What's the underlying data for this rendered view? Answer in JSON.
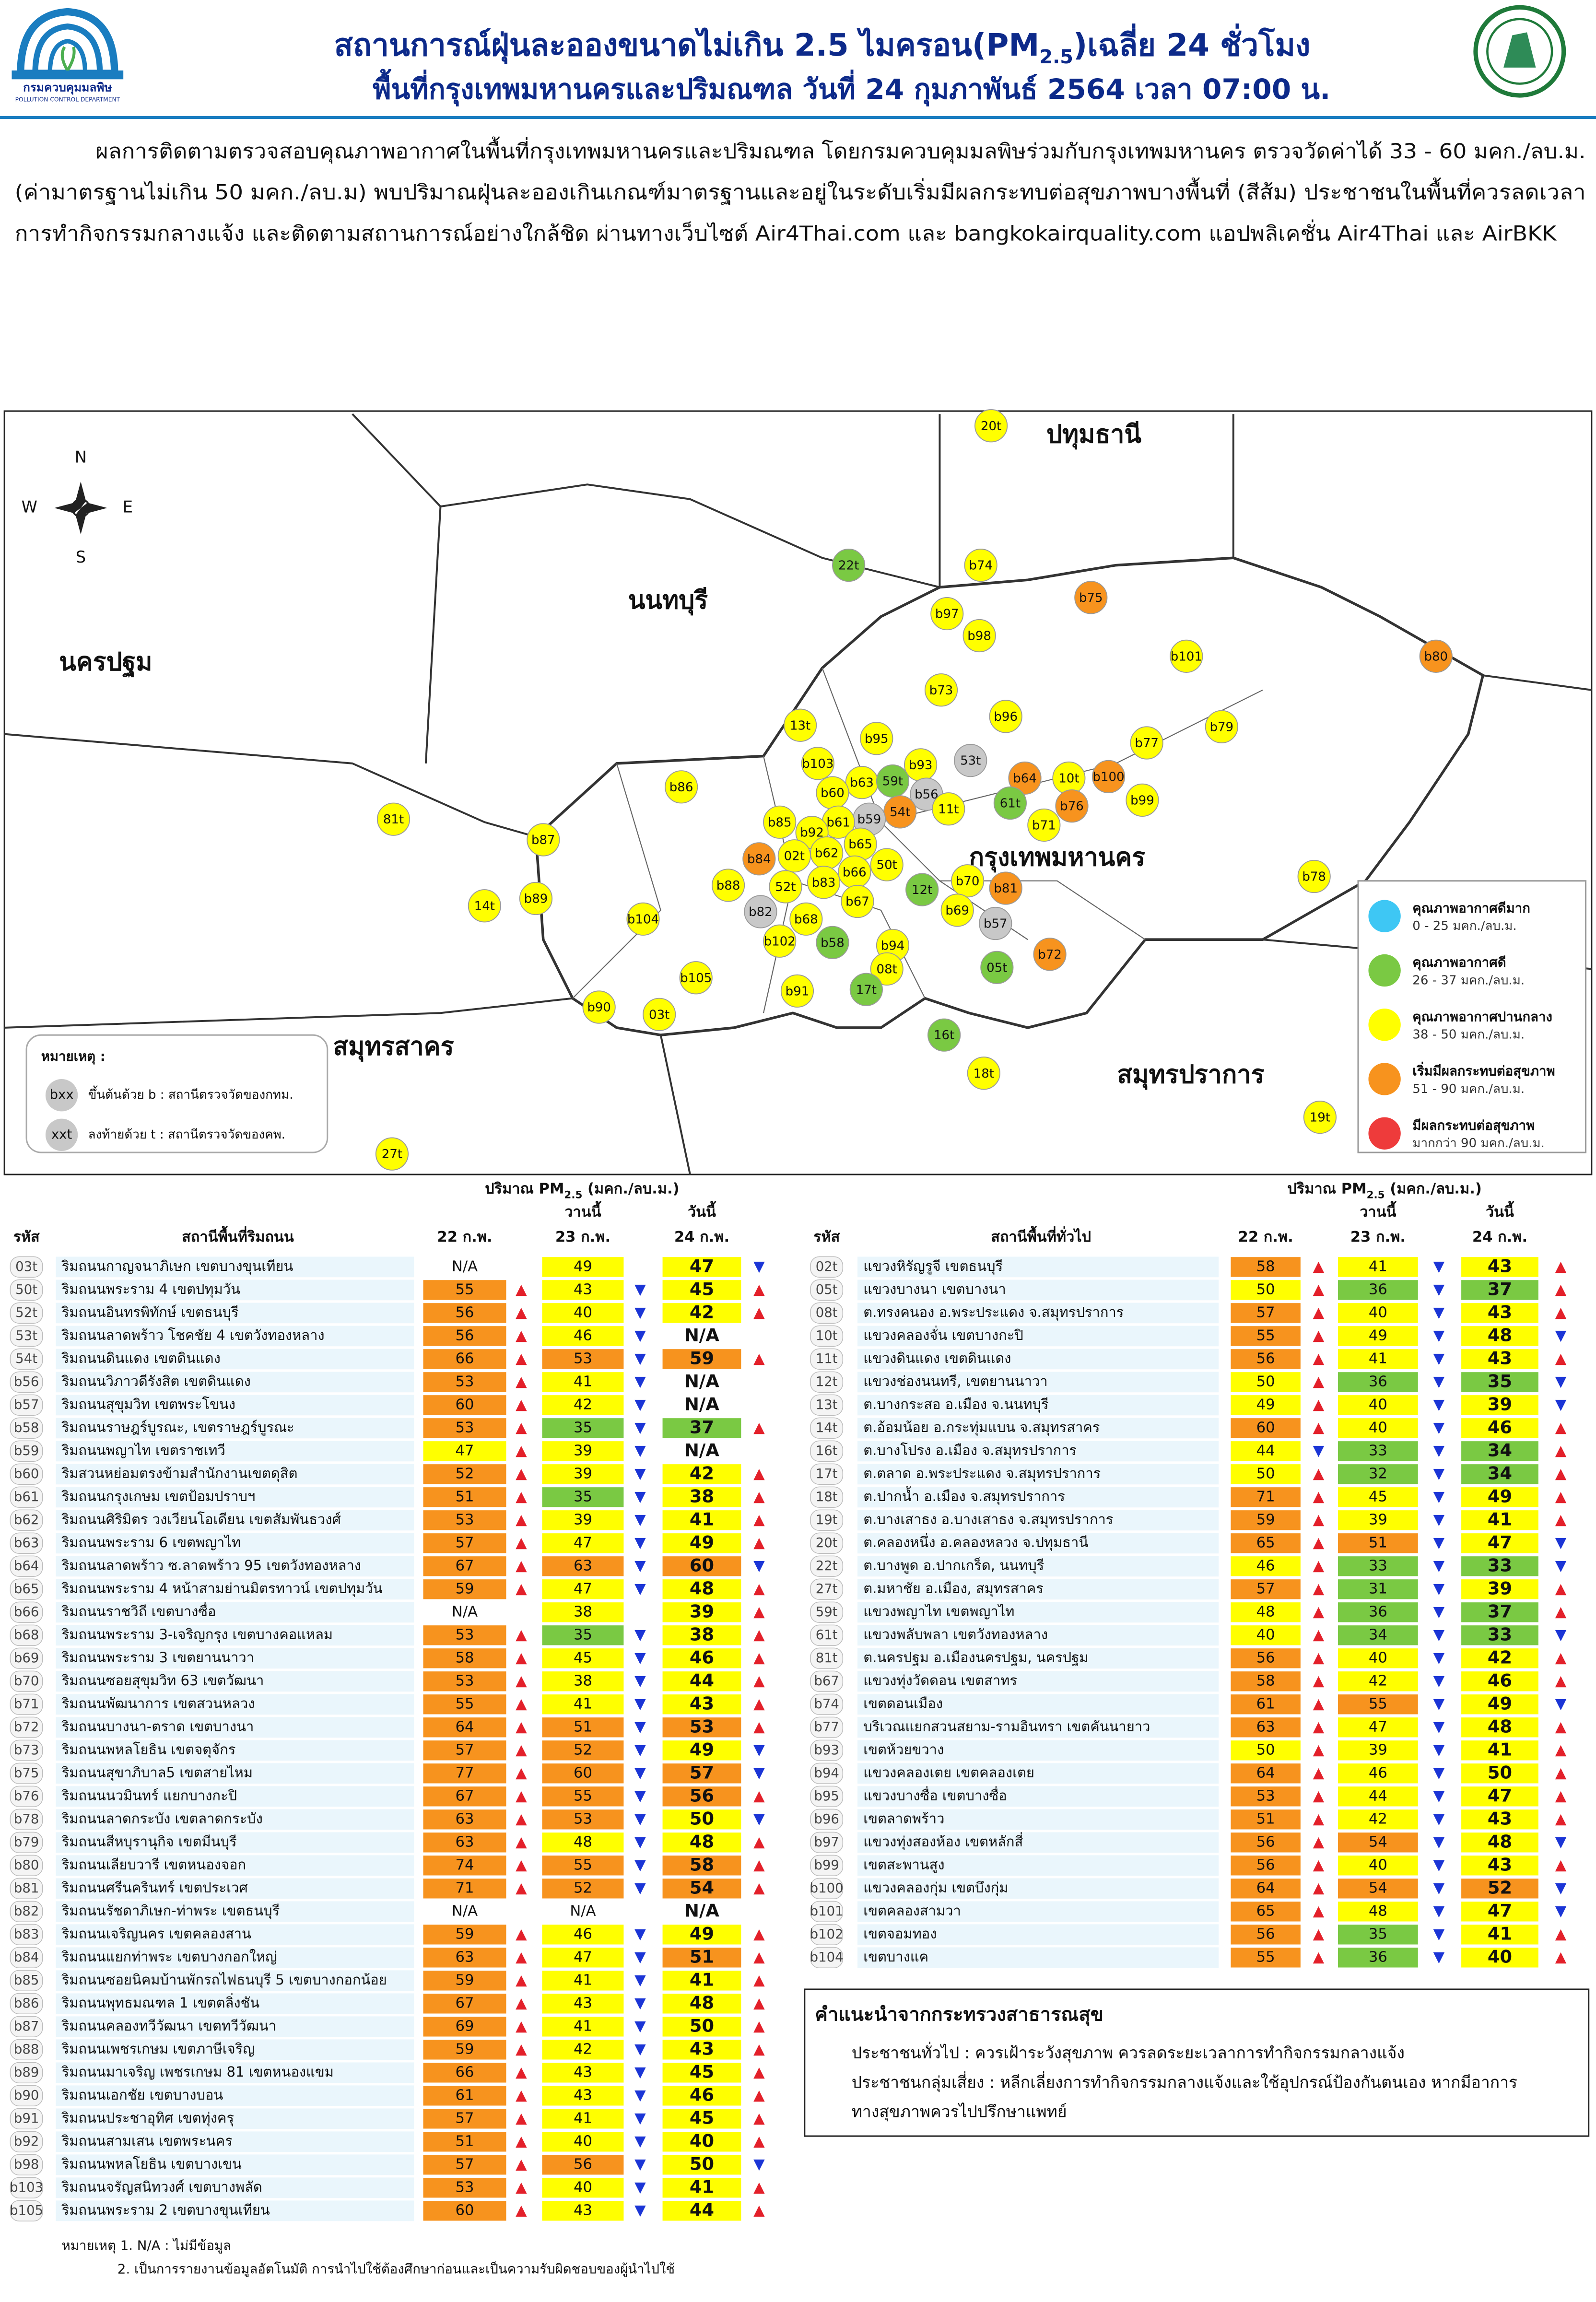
{
  "header": {
    "title_main": "สถานการณ์ฝุ่นละอองขนาดไม่เกิน 2.5 ไมครอน(PM",
    "title_sub": "2.5",
    "title_end": ")เฉลี่ย 24 ชั่วโมง",
    "subtitle": "พื้นที่กรุงเทพมหานครและปริมณฑล วันที่ 24 กุมภาพันธ์ 2564 เวลา 07:00 น.",
    "logo_name": "กรมควบคุมมลพิษ",
    "logo_en": "POLLUTION CONTROL DEPARTMENT"
  },
  "summary": [
    "ผลการติดตามตรวจสอบคุณภาพอากาศในพื้นที่กรุงเทพมหานครและปริมณฑล โดยกรมควบคุมมลพิษร่วมกับกรุงเทพมหานคร ตรวจวัดค่าได้ 33 - 60 มคก./ลบ.ม.",
    "(ค่ามาตรฐานไม่เกิน 50 มคก./ลบ.ม) พบปริมาณฝุ่นละอองเกินเกณฑ์มาตรฐานและอยู่ในระดับเริ่มมีผลกระทบต่อสุขภาพบางพื้นที่ (สีส้ม) ประชาชนในพื้นที่ควรลดเวลา",
    "การทำกิจกรรมกลางแจ้ง และติดตามสถานการณ์อย่างใกล้ชิด ผ่านทางเว็บไซต์ Air4Thai.com และ bangkokairquality.com แอปพลิเคชั่น Air4Thai และ AirBKK"
  ],
  "map": {
    "compass": {
      "n": "N",
      "s": "S",
      "e": "E",
      "w": "W"
    },
    "provinces": [
      "ปทุมธานี",
      "นนทบุรี",
      "นครปฐม",
      "กรุงเทพมหานคร",
      "สมุทรสาคร",
      "สมุทรปราการ"
    ],
    "stations": [
      "20t",
      "22t",
      "b74",
      "b75",
      "b97",
      "b98",
      "b101",
      "b80",
      "b73",
      "b96",
      "13t",
      "b95",
      "b79",
      "b77",
      "b103",
      "b93",
      "53t",
      "b63",
      "59t",
      "b64",
      "10t",
      "b100",
      "b60",
      "b56",
      "61t",
      "b76",
      "b99",
      "b86",
      "54t",
      "11t",
      "b59",
      "b61",
      "b71",
      "b85",
      "b92",
      "81t",
      "b87",
      "b65",
      "b62",
      "02t",
      "b84",
      "50t",
      "b66",
      "b83",
      "52t",
      "b88",
      "b70",
      "b81",
      "12t",
      "b89",
      "14t",
      "b78",
      "b67",
      "b69",
      "b82",
      "b68",
      "b57",
      "b104",
      "b102",
      "b58",
      "b94",
      "b72",
      "08t",
      "05t",
      "b105",
      "b91",
      "17t",
      "b90",
      "03t",
      "16t",
      "18t",
      "19t",
      "27t"
    ],
    "na_color": "#c8c8c8",
    "note": {
      "title": "หมายเหตุ :",
      "b_icon": "bxx",
      "b_text": "ขึ้นต้นด้วย b : สถานีตรวจวัดของกทม.",
      "t_icon": "xxt",
      "t_text": "ลงท้ายด้วย t : สถานีตรวจวัดของคพ."
    }
  },
  "levels": [
    {
      "title": "คุณภาพอากาศดีมาก",
      "range": "0 - 25 มคก./ลบ.ม.",
      "max": 25,
      "color": "#3ec7f4"
    },
    {
      "title": "คุณภาพอากาศดี",
      "range": "26 - 37 มคก./ลบ.ม.",
      "max": 37,
      "color": "#7ac943"
    },
    {
      "title": "คุณภาพอากาศปานกลาง",
      "range": "38 - 50 มคก./ลบ.ม.",
      "max": 50,
      "color": "#ffff00"
    },
    {
      "title": "เริ่มมีผลกระทบต่อสุขภาพ",
      "range": "51 - 90 มคก./ลบ.ม.",
      "max": 90,
      "color": "#f7931e"
    },
    {
      "title": "มีผลกระทบต่อสุขภาพ",
      "range": "มากกว่า 90 มคก./ลบ.ม.",
      "color": "#ee3b3b"
    }
  ],
  "trend_colors": {
    "▲": "#e3202a",
    "▼": "#1b35d6"
  },
  "tables": [
    {
      "unit_prefix": "ปริมาณ PM",
      "unit_sub": "2.5",
      "unit_suffix": " (มคก./ลบ.ม.)",
      "yesterday": "วานนี้",
      "today": "วันนี้",
      "columns": [
        "รหัส",
        "สถานีพื้นที่ริมถนน",
        "22 ก.พ.",
        "23 ก.พ.",
        "24 ก.พ."
      ],
      "rows": [
        [
          "03t",
          "ริมถนนกาญจนาภิเษก เขตบางขุนเทียน",
          "N/A",
          49,
          47
        ],
        [
          "50t",
          "ริมถนนพระราม 4 เขตปทุมวัน",
          55,
          43,
          45
        ],
        [
          "52t",
          "ริมถนนอินทรพิทักษ์ เขตธนบุรี",
          56,
          40,
          42
        ],
        [
          "53t",
          "ริมถนนลาดพร้าว โชคชัย 4 เขตวังทองหลาง",
          56,
          46,
          "N/A"
        ],
        [
          "54t",
          "ริมถนนดินแดง เขตดินแดง",
          66,
          53,
          59
        ],
        [
          "b56",
          "ริมถนนวิภาวดีรังสิต เขตดินแดง",
          53,
          41,
          "N/A"
        ],
        [
          "b57",
          "ริมถนนสุขุมวิท เขตพระโขนง",
          60,
          42,
          "N/A"
        ],
        [
          "b58",
          "ริมถนนราษฎร์บูรณะ, เขตราษฎร์บูรณะ",
          53,
          35,
          37
        ],
        [
          "b59",
          "ริมถนนพญาไท เขตราชเทวี",
          47,
          39,
          "N/A"
        ],
        [
          "b60",
          "ริมสวนหย่อมตรงข้ามสำนักงานเขตดุสิต",
          52,
          39,
          42
        ],
        [
          "b61",
          "ริมถนนกรุงเกษม เขตป้อมปราบฯ",
          51,
          35,
          38
        ],
        [
          "b62",
          "ริมถนนศิริมิตร วงเวียนโอเดียน เขตสัมพันธวงศ์",
          53,
          39,
          41
        ],
        [
          "b63",
          "ริมถนนพระราม 6 เขตพญาไท",
          57,
          47,
          49
        ],
        [
          "b64",
          "ริมถนนลาดพร้าว ซ.ลาดพร้าว 95 เขตวังทองหลาง",
          67,
          63,
          60
        ],
        [
          "b65",
          "ริมถนนพระราม 4 หน้าสามย่านมิตรทาวน์ เขตปทุมวัน",
          59,
          47,
          48
        ],
        [
          "b66",
          "ริมถนนราชวิถี เขตบางซื่อ",
          "N/A",
          38,
          39
        ],
        [
          "b68",
          "ริมถนนพระราม 3-เจริญกรุง เขตบางคอแหลม",
          53,
          35,
          38
        ],
        [
          "b69",
          "ริมถนนพระราม 3 เขตยานนาวา",
          58,
          45,
          46
        ],
        [
          "b70",
          "ริมถนนซอยสุขุมวิท 63 เขตวัฒนา",
          53,
          38,
          44
        ],
        [
          "b71",
          "ริมถนนพัฒนาการ เขตสวนหลวง",
          55,
          41,
          43
        ],
        [
          "b72",
          "ริมถนนบางนา-ตราด เขตบางนา",
          64,
          51,
          53
        ],
        [
          "b73",
          "ริมถนนพหลโยธิน เขตจตุจักร",
          57,
          52,
          49
        ],
        [
          "b75",
          "ริมถนนสุขาภิบาล5 เขตสายไหม",
          77,
          60,
          57
        ],
        [
          "b76",
          "ริมถนนนวมินทร์ แยกบางกะปิ",
          67,
          55,
          56
        ],
        [
          "b78",
          "ริมถนนลาดกระบัง เขตลาดกระบัง",
          63,
          53,
          50
        ],
        [
          "b79",
          "ริมถนนสีหบุรานุกิจ เขตมีนบุรี",
          63,
          48,
          48
        ],
        [
          "b80",
          "ริมถนนเลียบวารี เขตหนองจอก",
          74,
          55,
          58
        ],
        [
          "b81",
          "ริมถนนศรีนครินทร์ เขตประเวศ",
          71,
          52,
          54
        ],
        [
          "b82",
          "ริมถนนรัชดาภิเษก-ท่าพระ เขตธนบุรี",
          "N/A",
          "N/A",
          "N/A"
        ],
        [
          "b83",
          "ริมถนนเจริญนคร เขตคลองสาน",
          59,
          46,
          49
        ],
        [
          "b84",
          "ริมถนนแยกท่าพระ เขตบางกอกใหญ่",
          63,
          47,
          51
        ],
        [
          "b85",
          "ริมถนนซอยนิคมบ้านพักรถไฟธนบุรี 5 เขตบางกอกน้อย",
          59,
          41,
          41
        ],
        [
          "b86",
          "ริมถนนพุทธมณฑล 1 เขตตลิ่งชัน",
          67,
          43,
          48
        ],
        [
          "b87",
          "ริมถนนคลองทวีวัฒนา เขตทวีวัฒนา",
          69,
          41,
          50
        ],
        [
          "b88",
          "ริมถนนเพชรเกษม เขตภาษีเจริญ",
          59,
          42,
          43
        ],
        [
          "b89",
          "ริมถนนมาเจริญ เพชรเกษม 81 เขตหนองแขม",
          66,
          43,
          45
        ],
        [
          "b90",
          "ริมถนนเอกชัย เขตบางบอน",
          61,
          43,
          46
        ],
        [
          "b91",
          "ริมถนนประชาอุทิศ เขตทุ่งครุ",
          57,
          41,
          45
        ],
        [
          "b92",
          "ริมถนนสามเสน เขตพระนคร",
          51,
          40,
          40
        ],
        [
          "b98",
          "ริมถนนพหลโยธิน เขตบางเขน",
          57,
          56,
          50
        ],
        [
          "b103",
          "ริมถนนจรัญสนิทวงศ์ เขตบางพลัด",
          53,
          40,
          41
        ],
        [
          "b105",
          "ริมถนนพระราม 2 เขตบางขุนเทียน",
          60,
          43,
          44
        ]
      ],
      "trends": [
        [
          null,
          null,
          "▼"
        ],
        [
          "▲",
          "▼",
          "▲"
        ],
        [
          "▲",
          "▼",
          "▲"
        ],
        [
          "▲",
          "▼",
          null
        ],
        [
          "▲",
          "▼",
          "▲"
        ],
        [
          "▲",
          "▼",
          null
        ],
        [
          "▲",
          "▼",
          null
        ],
        [
          "▲",
          "▼",
          "▲"
        ],
        [
          "▲",
          "▼",
          null
        ],
        [
          "▲",
          "▼",
          "▲"
        ],
        [
          "▲",
          "▼",
          "▲"
        ],
        [
          "▲",
          "▼",
          "▲"
        ],
        [
          "▲",
          "▼",
          "▲"
        ],
        [
          "▲",
          "▼",
          "▼"
        ],
        [
          "▲",
          "▼",
          "▲"
        ],
        [
          null,
          null,
          "▲"
        ],
        [
          "▲",
          "▼",
          "▲"
        ],
        [
          "▲",
          "▼",
          "▲"
        ],
        [
          "▲",
          "▼",
          "▲"
        ],
        [
          "▲",
          "▼",
          "▲"
        ],
        [
          "▲",
          "▼",
          "▲"
        ],
        [
          "▲",
          "▼",
          "▼"
        ],
        [
          "▲",
          "▼",
          "▼"
        ],
        [
          "▲",
          "▼",
          "▲"
        ],
        [
          "▲",
          "▼",
          "▼"
        ],
        [
          "▲",
          "▼",
          "▲"
        ],
        [
          "▲",
          "▼",
          "▲"
        ],
        [
          "▲",
          "▼",
          "▲"
        ],
        [
          null,
          null,
          null
        ],
        [
          "▲",
          "▼",
          "▲"
        ],
        [
          "▲",
          "▼",
          "▲"
        ],
        [
          "▲",
          "▼",
          "▲"
        ],
        [
          "▲",
          "▼",
          "▲"
        ],
        [
          "▲",
          "▼",
          "▲"
        ],
        [
          "▲",
          "▼",
          "▲"
        ],
        [
          "▲",
          "▼",
          "▲"
        ],
        [
          "▲",
          "▼",
          "▲"
        ],
        [
          "▲",
          "▼",
          "▲"
        ],
        [
          "▲",
          "▼",
          "▲"
        ],
        [
          "▲",
          "▼",
          "▼"
        ],
        [
          "▲",
          "▼",
          "▲"
        ],
        [
          "▲",
          "▼",
          "▲"
        ]
      ]
    },
    {
      "unit_prefix": "ปริมาณ PM",
      "unit_sub": "2.5",
      "unit_suffix": " (มคก./ลบ.ม.)",
      "yesterday": "วานนี้",
      "today": "วันนี้",
      "columns": [
        "รหัส",
        "สถานีพื้นที่ทั่วไป",
        "22 ก.พ.",
        "23 ก.พ.",
        "24 ก.พ."
      ],
      "rows": [
        [
          "02t",
          "แขวงหิรัญรูจี เขตธนบุรี",
          58,
          41,
          43
        ],
        [
          "05t",
          "แขวงบางนา เขตบางนา",
          50,
          36,
          37
        ],
        [
          "08t",
          "ต.ทรงคนอง อ.พระประแดง จ.สมุทรปราการ",
          57,
          40,
          43
        ],
        [
          "10t",
          "แขวงคลองจั่น เขตบางกะปิ",
          55,
          49,
          48
        ],
        [
          "11t",
          "แขวงดินแดง เขตดินแดง",
          56,
          41,
          43
        ],
        [
          "12t",
          "แขวงช่องนนทรี, เขตยานนาวา",
          50,
          36,
          35
        ],
        [
          "13t",
          "ต.บางกระสอ อ.เมือง จ.นนทบุรี",
          49,
          40,
          39
        ],
        [
          "14t",
          "ต.อ้อมน้อย อ.กระทุ่มแบน จ.สมุทรสาคร",
          60,
          40,
          46
        ],
        [
          "16t",
          "ต.บางโปรง อ.เมือง จ.สมุทรปราการ",
          44,
          33,
          34
        ],
        [
          "17t",
          "ต.ตลาด อ.พระประแดง จ.สมุทรปราการ",
          50,
          32,
          34
        ],
        [
          "18t",
          "ต.ปากน้ำ อ.เมือง จ.สมุทรปราการ",
          71,
          45,
          49
        ],
        [
          "19t",
          "ต.บางเสาธง อ.บางเสาธง จ.สมุทรปราการ",
          59,
          39,
          41
        ],
        [
          "20t",
          "ต.คลองหนึ่ง อ.คลองหลวง จ.ปทุมธานี",
          65,
          51,
          47
        ],
        [
          "22t",
          "ต.บางพูด อ.ปากเกร็ด, นนทบุรี",
          46,
          33,
          33
        ],
        [
          "27t",
          "ต.มหาชัย อ.เมือง, สมุทรสาคร",
          57,
          31,
          39
        ],
        [
          "59t",
          "แขวงพญาไท เขตพญาไท",
          48,
          36,
          37
        ],
        [
          "61t",
          "แขวงพลับพลา เขตวังทองหลาง",
          40,
          34,
          33
        ],
        [
          "81t",
          "ต.นครปฐม อ.เมืองนครปฐม, นครปฐม",
          56,
          40,
          42
        ],
        [
          "b67",
          "แขวงทุ่งวัดดอน เขตสาทร",
          58,
          42,
          46
        ],
        [
          "b74",
          "เขตดอนเมือง",
          61,
          55,
          49
        ],
        [
          "b77",
          "บริเวณแยกสวนสยาม-รามอินทรา เขตคันนายาว",
          63,
          47,
          48
        ],
        [
          "b93",
          "เขตห้วยขวาง",
          50,
          39,
          41
        ],
        [
          "b94",
          "แขวงคลองเตย เขตคลองเตย",
          64,
          46,
          50
        ],
        [
          "b95",
          "แขวงบางซื่อ เขตบางซื่อ",
          53,
          44,
          47
        ],
        [
          "b96",
          "เขตลาดพร้าว",
          51,
          42,
          43
        ],
        [
          "b97",
          "แขวงทุ่งสองห้อง เขตหลักสี่",
          56,
          54,
          48
        ],
        [
          "b99",
          "เขตสะพานสูง",
          56,
          40,
          43
        ],
        [
          "b100",
          "แขวงคลองกุ่ม เขตบึงกุ่ม",
          64,
          54,
          52
        ],
        [
          "b101",
          "เขตคลองสามวา",
          65,
          48,
          47
        ],
        [
          "b102",
          "เขตจอมทอง",
          56,
          35,
          41
        ],
        [
          "b104",
          "เขตบางแค",
          55,
          36,
          40
        ]
      ],
      "trends": [
        [
          "▲",
          "▼",
          "▲"
        ],
        [
          "▲",
          "▼",
          "▲"
        ],
        [
          "▲",
          "▼",
          "▲"
        ],
        [
          "▲",
          "▼",
          "▼"
        ],
        [
          "▲",
          "▼",
          "▲"
        ],
        [
          "▲",
          "▼",
          "▼"
        ],
        [
          "▲",
          "▼",
          "▼"
        ],
        [
          "▲",
          "▼",
          "▲"
        ],
        [
          "▼",
          "▼",
          "▲"
        ],
        [
          "▲",
          "▼",
          "▲"
        ],
        [
          "▲",
          "▼",
          "▲"
        ],
        [
          "▲",
          "▼",
          "▲"
        ],
        [
          "▲",
          "▼",
          "▼"
        ],
        [
          "▲",
          "▼",
          "▼"
        ],
        [
          "▲",
          "▼",
          "▲"
        ],
        [
          "▲",
          "▼",
          "▲"
        ],
        [
          "▲",
          "▼",
          "▼"
        ],
        [
          "▲",
          "▼",
          "▲"
        ],
        [
          "▲",
          "▼",
          "▲"
        ],
        [
          "▲",
          "▼",
          "▼"
        ],
        [
          "▲",
          "▼",
          "▲"
        ],
        [
          "▲",
          "▼",
          "▲"
        ],
        [
          "▲",
          "▼",
          "▲"
        ],
        [
          "▲",
          "▼",
          "▲"
        ],
        [
          "▲",
          "▼",
          "▲"
        ],
        [
          "▲",
          "▼",
          "▼"
        ],
        [
          "▲",
          "▼",
          "▲"
        ],
        [
          "▲",
          "▼",
          "▼"
        ],
        [
          "▲",
          "▼",
          "▼"
        ],
        [
          "▲",
          "▼",
          "▲"
        ],
        [
          "▲",
          "▼",
          "▲"
        ]
      ]
    }
  ],
  "advice": {
    "title": "คำแนะนำจากกระทรวงสาธารณสุข",
    "lines": [
      "ประชาชนทั่วไป : ควรเฝ้าระวังสุขภาพ ควรลดระยะเวลาการทำกิจกรรมกลางแจ้ง",
      "ประชาชนกลุ่มเสี่ยง : หลีกเลี่ยงการทำกิจกรรมกลางแจ้งและใช้อุปกรณ์ป้องกันตนเอง หากมีอาการ",
      "ทางสุขภาพควรไปปรึกษาแพทย์"
    ]
  },
  "footnotes": [
    "หมายเหตุ 1. N/A : ไม่มีข้อมูล",
    "2. เป็นการรายงานข้อมูลอัตโนมัติ การนำไปใช้ต้องศึกษาก่อนและเป็นความรับผิดชอบของผู้นำไปใช้"
  ]
}
